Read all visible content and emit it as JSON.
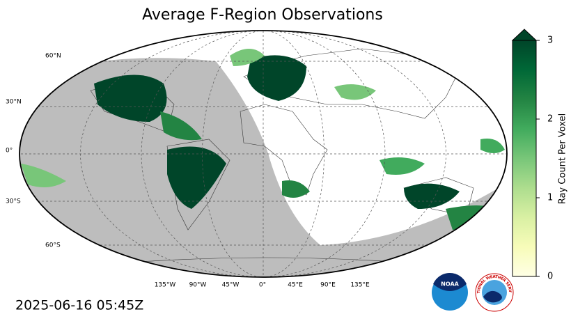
{
  "title": "Average F-Region Observations",
  "timestamp": "2025-06-16 05:45Z",
  "map": {
    "lat_labels": [
      "60°N",
      "30°N",
      "0°",
      "30°S",
      "60°S"
    ],
    "lon_labels": [
      "135°W",
      "90°W",
      "45°W",
      "0°",
      "45°E",
      "90°E",
      "135°E"
    ]
  },
  "colorbar": {
    "label": "Ray Count Per Voxel",
    "lim": [
      0,
      3
    ],
    "ticks": [
      0,
      1,
      2,
      3
    ],
    "colors": [
      "#ffffe5",
      "#f7fcb9",
      "#d9f0a3",
      "#addd8e",
      "#78c679",
      "#41ab5d",
      "#238443",
      "#006837",
      "#004529"
    ]
  },
  "logos": {
    "noaa": "NOAA",
    "nws": "NATIONAL WEATHER SERVICE"
  }
}
